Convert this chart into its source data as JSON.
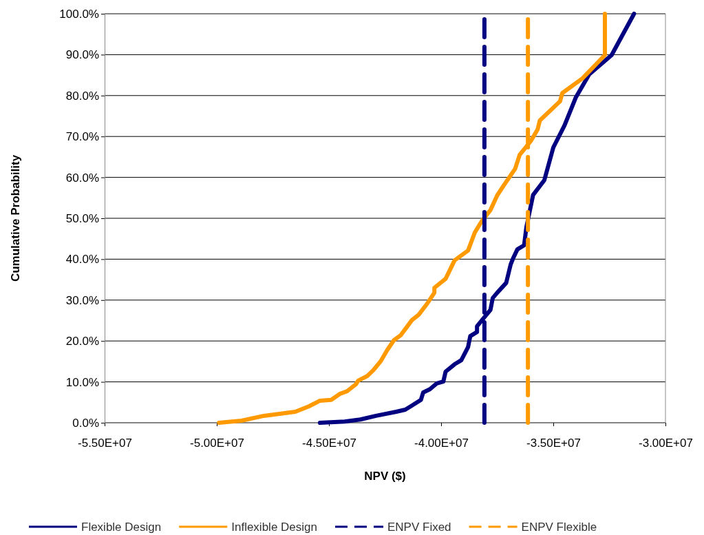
{
  "chart_data": {
    "type": "line",
    "xlabel": "NPV ($)",
    "ylabel": "Cumulative Probability",
    "xlim": [
      -55000000,
      -30000000
    ],
    "xticks": [
      {
        "value": -55000000,
        "label": "-5.50E+07"
      },
      {
        "value": -50000000,
        "label": "-5.00E+07"
      },
      {
        "value": -45000000,
        "label": "-4.50E+07"
      },
      {
        "value": -40000000,
        "label": "-4.00E+07"
      },
      {
        "value": -35000000,
        "label": "-3.50E+07"
      },
      {
        "value": -30000000,
        "label": "-3.00E+07"
      }
    ],
    "ylim": [
      0,
      100
    ],
    "yticks": [
      {
        "value": 0,
        "label": "0.0%"
      },
      {
        "value": 10,
        "label": "10.0%"
      },
      {
        "value": 20,
        "label": "20.0%"
      },
      {
        "value": 30,
        "label": "30.0%"
      },
      {
        "value": 40,
        "label": "40.0%"
      },
      {
        "value": 50,
        "label": "50.0%"
      },
      {
        "value": 60,
        "label": "60.0%"
      },
      {
        "value": 70,
        "label": "70.0%"
      },
      {
        "value": 80,
        "label": "80.0%"
      },
      {
        "value": 90,
        "label": "90.0%"
      },
      {
        "value": 100,
        "label": "100.0%"
      }
    ],
    "grid": "y",
    "legend": "bottom",
    "marker": "none",
    "series": [
      {
        "name": "Flexible Design",
        "color": "#000080",
        "line_style": "solid",
        "x": [
          -45400000,
          -44300000,
          -43600000,
          -42900000,
          -42000000,
          -41600000,
          -41300000,
          -40900000,
          -40800000,
          -40500000,
          -40200000,
          -39900000,
          -39800000,
          -39400000,
          -39100000,
          -38800000,
          -38700000,
          -38400000,
          -38400000,
          -38000000,
          -37800000,
          -37700000,
          -37500000,
          -37100000,
          -36900000,
          -36800000,
          -36600000,
          -36300000,
          -36200000,
          -35900000,
          -35400000,
          -35000000,
          -34500000,
          -34000000,
          -33400000,
          -32400000,
          -31400000
        ],
        "values": [
          0,
          0.3,
          0.8,
          1.7,
          2.7,
          3.2,
          4.2,
          5.6,
          7.4,
          8.2,
          9.6,
          10.1,
          12.5,
          14.3,
          15.3,
          18.5,
          21.2,
          22.2,
          23.6,
          26.3,
          27.6,
          30.5,
          31.8,
          34.2,
          38.7,
          40.1,
          42.4,
          43.4,
          47.8,
          55.7,
          59.3,
          67.3,
          72.7,
          79.5,
          85.2,
          89.9,
          100
        ]
      },
      {
        "name": "Inflexible Design",
        "color": "#ff9900",
        "line_style": "solid",
        "x": [
          -49900000,
          -48900000,
          -47900000,
          -46500000,
          -45900000,
          -45400000,
          -44900000,
          -44500000,
          -44200000,
          -43800000,
          -43700000,
          -43300000,
          -43000000,
          -42700000,
          -42400000,
          -42100000,
          -41800000,
          -41300000,
          -41000000,
          -40600000,
          -40300000,
          -40300000,
          -39800000,
          -39400000,
          -38800000,
          -38500000,
          -38200000,
          -37800000,
          -37500000,
          -37200000,
          -36700000,
          -36500000,
          -36000000,
          -35700000,
          -35600000,
          -34700000,
          -34600000,
          -33700000,
          -32700000,
          -32700000
        ],
        "values": [
          0,
          0.5,
          1.7,
          2.7,
          4.0,
          5.4,
          5.6,
          7.1,
          7.7,
          9.4,
          10.3,
          11.4,
          13.0,
          15.0,
          17.8,
          20.2,
          21.4,
          25.1,
          26.4,
          29.3,
          31.8,
          33.0,
          35.2,
          39.7,
          42.1,
          46.5,
          49.2,
          52.0,
          55.6,
          58.1,
          62.1,
          65.5,
          68.9,
          71.7,
          73.9,
          78.6,
          80.6,
          84.2,
          89.9,
          100
        ]
      },
      {
        "name": "ENPV Fixed",
        "color": "#000080",
        "line_style": "dashed",
        "x": [
          -38070000,
          -38070000
        ],
        "values": [
          0,
          100
        ]
      },
      {
        "name": "ENPV Flexible",
        "color": "#ff9900",
        "line_style": "dashed",
        "x": [
          -36130000,
          -36130000
        ],
        "values": [
          0,
          100
        ]
      }
    ]
  }
}
